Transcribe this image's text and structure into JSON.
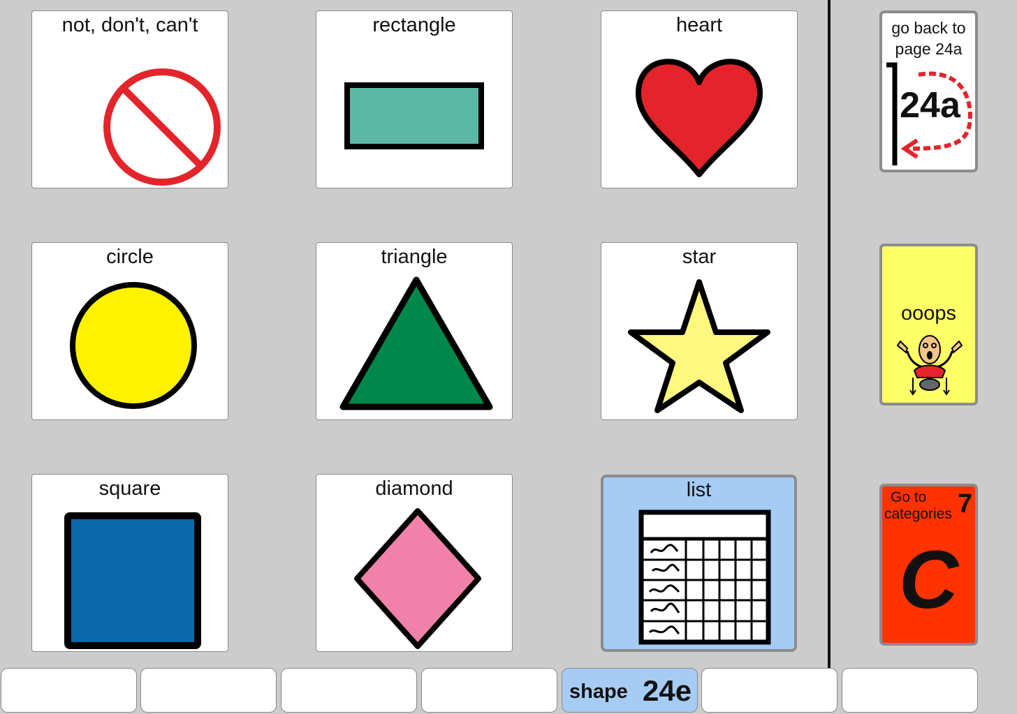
{
  "grid": {
    "cells": [
      {
        "label": "not, don't, can't",
        "icon": "no-symbol-icon"
      },
      {
        "label": "rectangle",
        "icon": "rectangle-icon"
      },
      {
        "label": "heart",
        "icon": "heart-icon"
      },
      {
        "label": "circle",
        "icon": "circle-icon"
      },
      {
        "label": "triangle",
        "icon": "triangle-icon"
      },
      {
        "label": "star",
        "icon": "star-icon"
      },
      {
        "label": "square",
        "icon": "square-icon"
      },
      {
        "label": "diamond",
        "icon": "diamond-icon"
      },
      {
        "label": "list",
        "icon": "list-table-icon"
      }
    ]
  },
  "sidebar": {
    "back": {
      "line1": "go back to",
      "line2": "page 24a",
      "page": "24a",
      "icon": "return-arrow-icon"
    },
    "ooops": {
      "label": "ooops",
      "icon": "oops-person-icon"
    },
    "categories": {
      "line1": "Go to",
      "line2": "categories",
      "number": "7",
      "letter": "C"
    }
  },
  "tabs": [
    {
      "label": ""
    },
    {
      "label": ""
    },
    {
      "label": ""
    },
    {
      "label": ""
    },
    {
      "label": "shape",
      "page": "24e",
      "active": true
    },
    {
      "label": ""
    },
    {
      "label": ""
    }
  ],
  "colors": {
    "background": "#cccccc",
    "no_symbol": "#e3242b",
    "rectangle": "#5bb8a5",
    "heart": "#e3242b",
    "circle": "#fff200",
    "triangle": "#00884a",
    "star": "#fff880",
    "square": "#0b69aa",
    "diamond": "#f081ab",
    "list_bg": "#a6ccf5",
    "ooops_bg": "#ffff66",
    "categories_bg": "#ff3300"
  }
}
